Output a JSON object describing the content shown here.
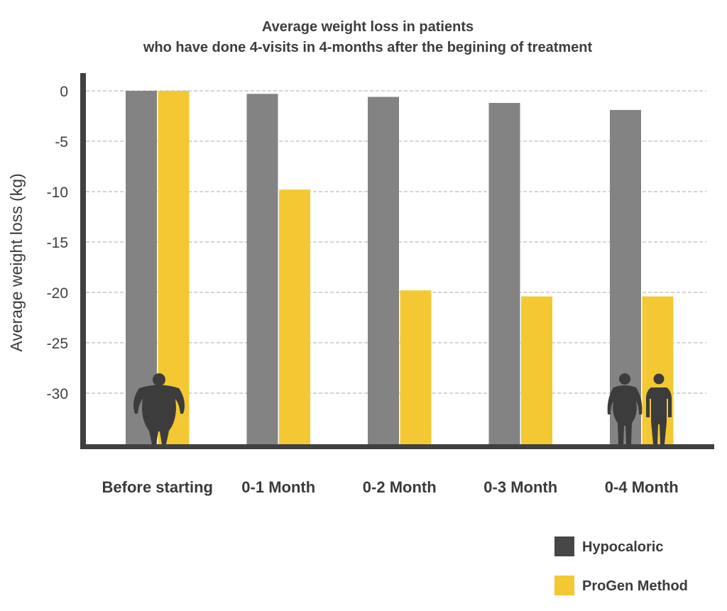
{
  "chart_data": {
    "type": "bar",
    "title": "Average weight loss in patients",
    "subtitle": "who have done 4-visits in 4-months after the begining of treatment",
    "ylabel": "Average weight loss (kg)",
    "xlabel": "",
    "categories": [
      "Before starting",
      "0-1 Month",
      "0-2 Month",
      "0-3 Month",
      "0-4 Month"
    ],
    "series": [
      {
        "name": "Hypocaloric",
        "color": "#838384",
        "values": [
          0,
          -0.3,
          -0.6,
          -1.2,
          -1.9
        ]
      },
      {
        "name": "ProGen Method",
        "color": "#f3c832",
        "values": [
          0,
          -9.8,
          -19.8,
          -20.4,
          -20.4
        ]
      }
    ],
    "legend_swatch_colors": [
      "#474747",
      "#f3c832"
    ],
    "yticks": [
      0,
      -5,
      -10,
      -15,
      -20,
      -25,
      -30
    ],
    "ylim": [
      -35,
      0
    ],
    "grid": true,
    "legend_position": "bottom-right",
    "icons": [
      "obese-person-icon",
      "overweight-person-icon",
      "slim-person-icon"
    ]
  }
}
